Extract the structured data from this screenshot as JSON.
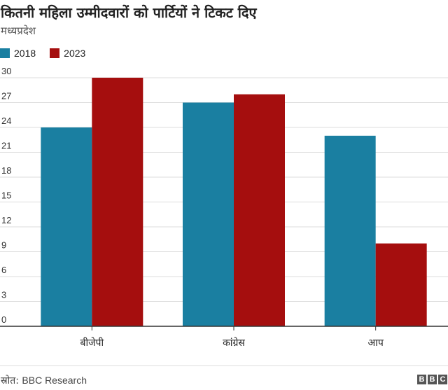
{
  "header": {
    "title": "कितनी महिला उम्मीदवारों को पार्टियों ने टिकट दिए",
    "subtitle": "मध्यप्रदेश"
  },
  "colors": {
    "series_2018": "#1a7fa1",
    "series_2023": "#a50e0e",
    "gridline": "#dddddd",
    "baseline": "#333333"
  },
  "chart_data": {
    "type": "bar",
    "categories": [
      "बीजेपी",
      "कांग्रेस",
      "आप"
    ],
    "series": [
      {
        "name": "2018",
        "values": [
          24,
          27,
          23
        ]
      },
      {
        "name": "2023",
        "values": [
          30,
          28,
          10
        ]
      }
    ],
    "yticks": [
      0,
      3,
      6,
      9,
      12,
      15,
      18,
      21,
      24,
      27,
      30
    ],
    "ylim": [
      0,
      30
    ],
    "grid": true,
    "legend": "top-left"
  },
  "footer": {
    "source_label": "स्रोत:",
    "source_text": "BBC Research",
    "logo_letters": [
      "B",
      "B",
      "C"
    ]
  }
}
